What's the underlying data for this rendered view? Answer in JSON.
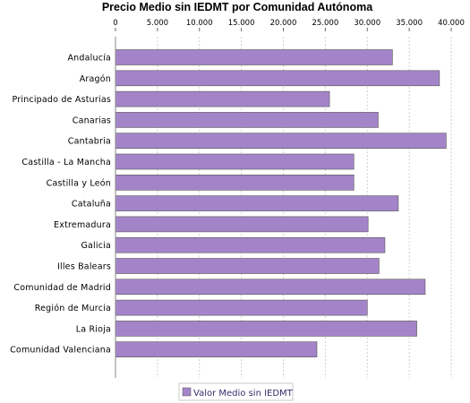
{
  "chart_data": {
    "type": "bar",
    "orientation": "horizontal",
    "title": "Precio Medio sin IEDMT por Comunidad Autónoma",
    "xlabel": "",
    "ylabel": "",
    "xlim": [
      0,
      40000
    ],
    "xticks": [
      0,
      5000,
      10000,
      15000,
      20000,
      25000,
      30000,
      35000,
      40000
    ],
    "xtick_labels": [
      "0",
      "5.000",
      "10.000",
      "15.000",
      "20.000",
      "25.000",
      "30.000",
      "35.000",
      "40.000"
    ],
    "x_axis_position": "top",
    "grid": "vertical dashed",
    "legend_position": "bottom-center",
    "bar_color": "#a484c9",
    "bar_border_color": "#555555",
    "categories": [
      "Andalucía",
      "Aragón",
      "Principado de Asturias",
      "Canarias",
      "Cantabria",
      "Castilla - La Mancha",
      "Castilla y León",
      "Cataluña",
      "Extremadura",
      "Galicia",
      "Illes Balears",
      "Comunidad de Madrid",
      "Región de Murcia",
      "La Rioja",
      "Comunidad Valenciana"
    ],
    "series": [
      {
        "name": "Valor Medio sin IEDMT",
        "values": [
          33000,
          38600,
          25500,
          31300,
          39400,
          28400,
          28400,
          33700,
          30100,
          32100,
          31400,
          36900,
          30000,
          35900,
          24000
        ]
      }
    ]
  }
}
